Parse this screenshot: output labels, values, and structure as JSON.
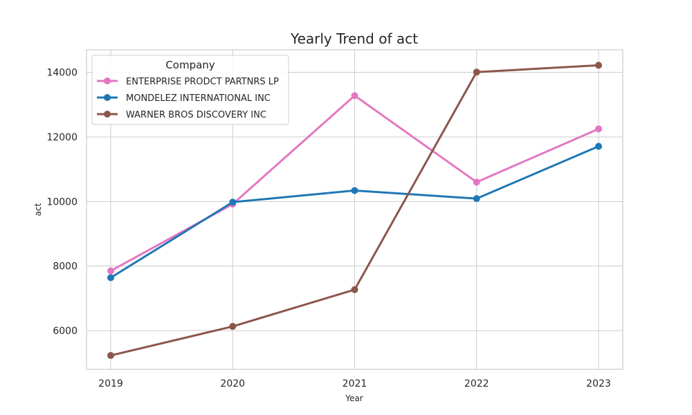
{
  "chart_data": {
    "type": "line",
    "title": "Yearly Trend of act",
    "xlabel": "Year",
    "ylabel": "act",
    "x": [
      "2019",
      "2020",
      "2021",
      "2022",
      "2023"
    ],
    "yticks": [
      6000,
      8000,
      10000,
      12000,
      14000
    ],
    "ylim": [
      4800,
      14700
    ],
    "grid": true,
    "legend": {
      "title": "Company",
      "placement": "top-left"
    },
    "series": [
      {
        "name": "ENTERPRISE PRODCT PARTNRS LP",
        "color": "#e377c2",
        "values": [
          7850,
          9920,
          13280,
          10600,
          12250
        ]
      },
      {
        "name": "MONDELEZ INTERNATIONAL INC",
        "color": "#1f77b4",
        "values": [
          7640,
          9980,
          10340,
          10090,
          11710
        ]
      },
      {
        "name": "WARNER BROS DISCOVERY INC",
        "color": "#8c564b",
        "values": [
          5230,
          6130,
          7270,
          14010,
          14220
        ]
      }
    ]
  }
}
